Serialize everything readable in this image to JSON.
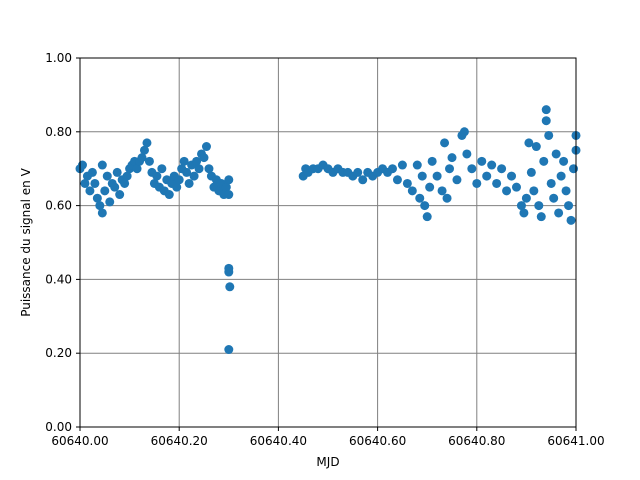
{
  "chart_data": {
    "type": "scatter",
    "x_label": "MJD",
    "y_label": "Puissance du signal en V",
    "xlim": [
      60640.0,
      60641.0
    ],
    "ylim": [
      0.0,
      1.0
    ],
    "xticks": [
      {
        "value": 60640.0,
        "label": "60640.00"
      },
      {
        "value": 60640.2,
        "label": "60640.20"
      },
      {
        "value": 60640.4,
        "label": "60640.40"
      },
      {
        "value": 60640.6,
        "label": "60640.60"
      },
      {
        "value": 60640.8,
        "label": "60640.80"
      },
      {
        "value": 60641.0,
        "label": "60641.00"
      }
    ],
    "yticks": [
      {
        "value": 0.0,
        "label": "0.00"
      },
      {
        "value": 0.2,
        "label": "0.20"
      },
      {
        "value": 0.4,
        "label": "0.40"
      },
      {
        "value": 0.6,
        "label": "0.60"
      },
      {
        "value": 0.8,
        "label": "0.80"
      },
      {
        "value": 1.0,
        "label": "1.00"
      }
    ],
    "grid": true,
    "color": "#1f77b4",
    "x": [
      60640.0,
      60640.005,
      60640.01,
      60640.015,
      60640.02,
      60640.025,
      60640.03,
      60640.035,
      60640.04,
      60640.045,
      60640.045,
      60640.05,
      60640.055,
      60640.06,
      60640.065,
      60640.07,
      60640.075,
      60640.08,
      60640.085,
      60640.09,
      60640.095,
      60640.1,
      60640.105,
      60640.11,
      60640.115,
      60640.12,
      60640.125,
      60640.13,
      60640.135,
      60640.14,
      60640.145,
      60640.15,
      60640.155,
      60640.16,
      60640.165,
      60640.17,
      60640.175,
      60640.18,
      60640.185,
      60640.19,
      60640.195,
      60640.2,
      60640.205,
      60640.21,
      60640.215,
      60640.22,
      60640.225,
      60640.23,
      60640.235,
      60640.24,
      60640.245,
      60640.25,
      60640.255,
      60640.26,
      60640.265,
      60640.27,
      60640.275,
      60640.28,
      60640.285,
      60640.29,
      60640.295,
      60640.3,
      60640.3,
      60640.3,
      60640.3,
      60640.302,
      60640.3,
      60640.45,
      60640.455,
      60640.46,
      60640.47,
      60640.48,
      60640.49,
      60640.5,
      60640.51,
      60640.52,
      60640.53,
      60640.54,
      60640.55,
      60640.56,
      60640.57,
      60640.58,
      60640.59,
      60640.6,
      60640.61,
      60640.62,
      60640.63,
      60640.64,
      60640.65,
      60640.66,
      60640.67,
      60640.68,
      60640.685,
      60640.69,
      60640.695,
      60640.7,
      60640.705,
      60640.71,
      60640.72,
      60640.73,
      60640.735,
      60640.74,
      60640.745,
      60640.75,
      60640.76,
      60640.77,
      60640.775,
      60640.78,
      60640.79,
      60640.8,
      60640.81,
      60640.82,
      60640.83,
      60640.84,
      60640.85,
      60640.86,
      60640.87,
      60640.88,
      60640.89,
      60640.895,
      60640.9,
      60640.905,
      60640.91,
      60640.915,
      60640.92,
      60640.925,
      60640.93,
      60640.935,
      60640.94,
      60640.94,
      60640.945,
      60640.95,
      60640.955,
      60640.96,
      60640.965,
      60640.97,
      60640.975,
      60640.98,
      60640.985,
      60640.99,
      60640.995,
      60641.0,
      60641.0
    ],
    "values": [
      0.7,
      0.71,
      0.66,
      0.68,
      0.64,
      0.69,
      0.66,
      0.62,
      0.6,
      0.58,
      0.71,
      0.64,
      0.68,
      0.61,
      0.66,
      0.65,
      0.69,
      0.63,
      0.67,
      0.66,
      0.68,
      0.7,
      0.71,
      0.72,
      0.7,
      0.72,
      0.73,
      0.75,
      0.77,
      0.72,
      0.69,
      0.66,
      0.68,
      0.65,
      0.7,
      0.64,
      0.67,
      0.63,
      0.66,
      0.68,
      0.65,
      0.67,
      0.7,
      0.72,
      0.69,
      0.66,
      0.71,
      0.68,
      0.72,
      0.7,
      0.74,
      0.73,
      0.76,
      0.7,
      0.68,
      0.65,
      0.67,
      0.64,
      0.66,
      0.63,
      0.65,
      0.67,
      0.63,
      0.43,
      0.42,
      0.38,
      0.21,
      0.68,
      0.7,
      0.69,
      0.7,
      0.7,
      0.71,
      0.7,
      0.69,
      0.7,
      0.69,
      0.69,
      0.68,
      0.69,
      0.67,
      0.69,
      0.68,
      0.69,
      0.7,
      0.69,
      0.7,
      0.67,
      0.71,
      0.66,
      0.64,
      0.71,
      0.62,
      0.68,
      0.6,
      0.57,
      0.65,
      0.72,
      0.68,
      0.64,
      0.77,
      0.62,
      0.7,
      0.73,
      0.67,
      0.79,
      0.8,
      0.74,
      0.7,
      0.66,
      0.72,
      0.68,
      0.71,
      0.66,
      0.7,
      0.64,
      0.68,
      0.65,
      0.6,
      0.58,
      0.62,
      0.77,
      0.69,
      0.64,
      0.76,
      0.6,
      0.57,
      0.72,
      0.86,
      0.83,
      0.79,
      0.66,
      0.62,
      0.74,
      0.58,
      0.68,
      0.72,
      0.64,
      0.6,
      0.56,
      0.7,
      0.79,
      0.75
    ]
  }
}
